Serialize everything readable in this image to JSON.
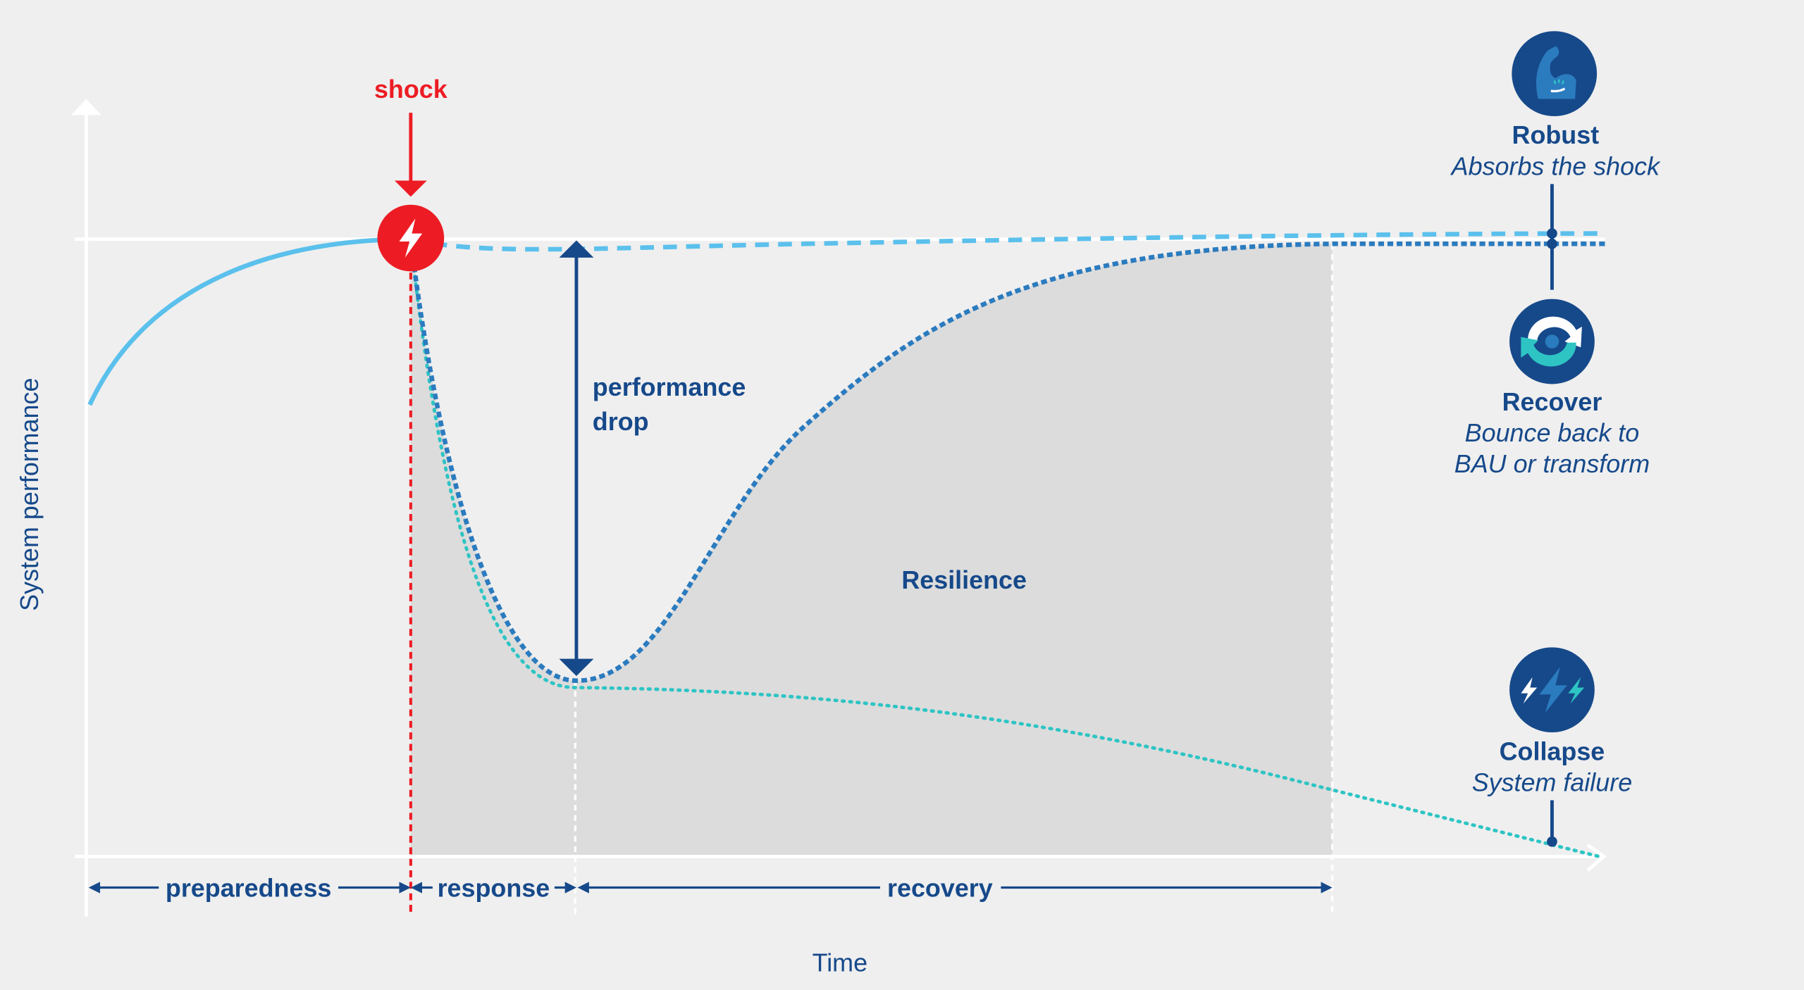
{
  "axes": {
    "y_label": "System performance",
    "x_label": "Time"
  },
  "shock": {
    "label": "shock",
    "icon": "lightning-bolt-icon"
  },
  "performance_drop": {
    "line1": "performance",
    "line2": "drop"
  },
  "area_label": "Resilience",
  "phases": {
    "preparedness": "preparedness",
    "response": "response",
    "recovery": "recovery"
  },
  "outcomes": {
    "robust": {
      "title": "Robust",
      "desc": "Absorbs the shock",
      "icon": "flexed-arm-icon"
    },
    "recover": {
      "title": "Recover",
      "desc1": "Bounce back to",
      "desc2": "BAU or transform",
      "icon": "cycle-arrows-icon"
    },
    "collapse": {
      "title": "Collapse",
      "desc": "System failure",
      "icon": "lightning-bolts-icon"
    }
  },
  "colors": {
    "shock": "#ed1c24",
    "navy": "#16498a",
    "robust": "#5bc0ec",
    "recover": "#2b7bbf",
    "collapse": "#2ec4c4",
    "area": "#dcdcdc"
  }
}
